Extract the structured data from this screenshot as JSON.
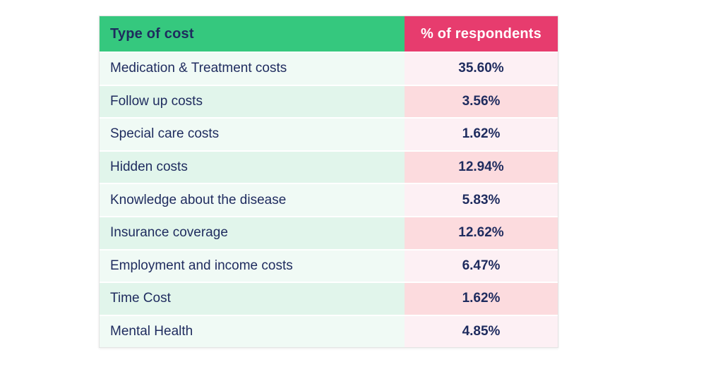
{
  "colors": {
    "header_green": "#35c87e",
    "header_pink": "#e73c6e",
    "row_mint_light": "#f0faf5",
    "row_mint_dark": "#e1f5eb",
    "row_pink_light": "#fdf0f4",
    "row_pink_dark": "#fcdbde",
    "text_navy": "#1e2b5e"
  },
  "table": {
    "columns": [
      {
        "label": "Type of cost"
      },
      {
        "label": "% of respondents"
      }
    ],
    "rows": [
      {
        "type": "Medication & Treatment costs",
        "percent": "35.60%"
      },
      {
        "type": "Follow up costs",
        "percent": "3.56%"
      },
      {
        "type": "Special care costs",
        "percent": "1.62%"
      },
      {
        "type": "Hidden costs",
        "percent": "12.94%"
      },
      {
        "type": "Knowledge about the disease",
        "percent": "5.83%"
      },
      {
        "type": "Insurance coverage",
        "percent": "12.62%"
      },
      {
        "type": "Employment and income costs",
        "percent": "6.47%"
      },
      {
        "type": "Time Cost",
        "percent": "1.62%"
      },
      {
        "type": "Mental Health",
        "percent": "4.85%"
      }
    ]
  },
  "chart_data": {
    "type": "table",
    "title": "",
    "columns": [
      "Type of cost",
      "% of respondents"
    ],
    "categories": [
      "Medication & Treatment costs",
      "Follow up costs",
      "Special care costs",
      "Hidden costs",
      "Knowledge about the disease",
      "Insurance coverage",
      "Employment and income costs",
      "Time Cost",
      "Mental Health"
    ],
    "values": [
      35.6,
      3.56,
      1.62,
      12.94,
      5.83,
      12.62,
      6.47,
      1.62,
      4.85
    ],
    "value_unit": "%",
    "legend_position": "none",
    "grid": false
  }
}
